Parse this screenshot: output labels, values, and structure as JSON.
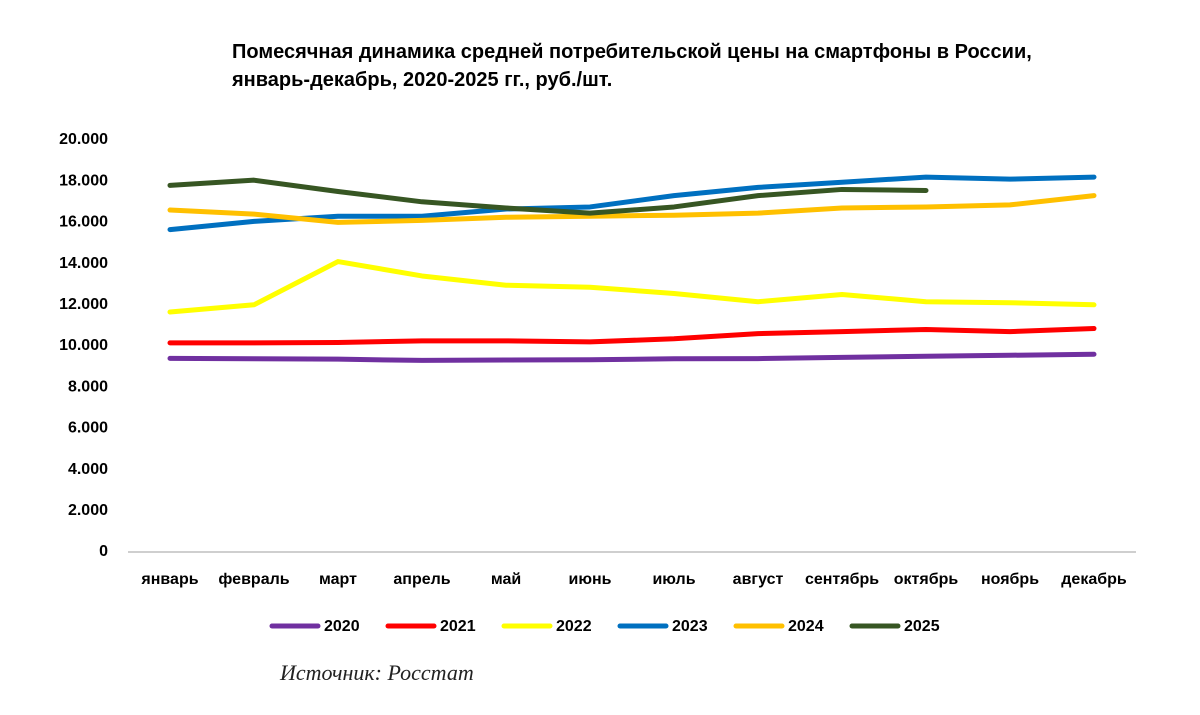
{
  "chart_data": {
    "type": "line",
    "title": "Помесячная динамика средней потребительской цены на смартфоны в России, январь-декабрь, 2020-2025 гг., руб./шт.",
    "source": "Источник: Росстат",
    "categories": [
      "январь",
      "февраль",
      "март",
      "апрель",
      "май",
      "июнь",
      "июль",
      "август",
      "сентябрь",
      "октябрь",
      "ноябрь",
      "декабрь"
    ],
    "ylim": [
      0,
      20000
    ],
    "yticks": [
      0,
      {
        "value": 2000,
        "label": "2.000"
      },
      {
        "value": 4000,
        "label": "4.000"
      },
      {
        "value": 6000,
        "label": "6.000"
      },
      {
        "value": 8000,
        "label": "8.000"
      },
      {
        "value": 10000,
        "label": "10.000"
      },
      {
        "value": 12000,
        "label": "12.000"
      },
      {
        "value": 14000,
        "label": "14.000"
      },
      {
        "value": 16000,
        "label": "16.000"
      },
      {
        "value": 18000,
        "label": "18.000"
      },
      {
        "value": 20000,
        "label": "20.000"
      }
    ],
    "grid": false,
    "legend": "bottom",
    "series": [
      {
        "name": "2020",
        "color": "#7030a0",
        "values": [
          9400,
          9380,
          9360,
          9300,
          9320,
          9330,
          9380,
          9390,
          9450,
          9500,
          9550,
          9600
        ]
      },
      {
        "name": "2021",
        "color": "#ff0000",
        "values": [
          10150,
          10150,
          10170,
          10250,
          10250,
          10200,
          10350,
          10600,
          10700,
          10800,
          10700,
          10850
        ]
      },
      {
        "name": "2022",
        "color": "#ffff00",
        "values": [
          11650,
          12000,
          14100,
          13400,
          12950,
          12850,
          12550,
          12150,
          12500,
          12150,
          12100,
          12000
        ]
      },
      {
        "name": "2023",
        "color": "#0070c0",
        "values": [
          15650,
          16050,
          16300,
          16300,
          16650,
          16750,
          17300,
          17700,
          17950,
          18200,
          18100,
          18200
        ]
      },
      {
        "name": "2024",
        "color": "#ffc000",
        "values": [
          16600,
          16400,
          16000,
          16100,
          16250,
          16300,
          16350,
          16450,
          16700,
          16750,
          16850,
          17300
        ]
      },
      {
        "name": "2025",
        "color": "#375623",
        "values": [
          17800,
          18050,
          17500,
          17000,
          16700,
          16450,
          16750,
          17300,
          17600,
          17550,
          null,
          null
        ]
      }
    ]
  }
}
